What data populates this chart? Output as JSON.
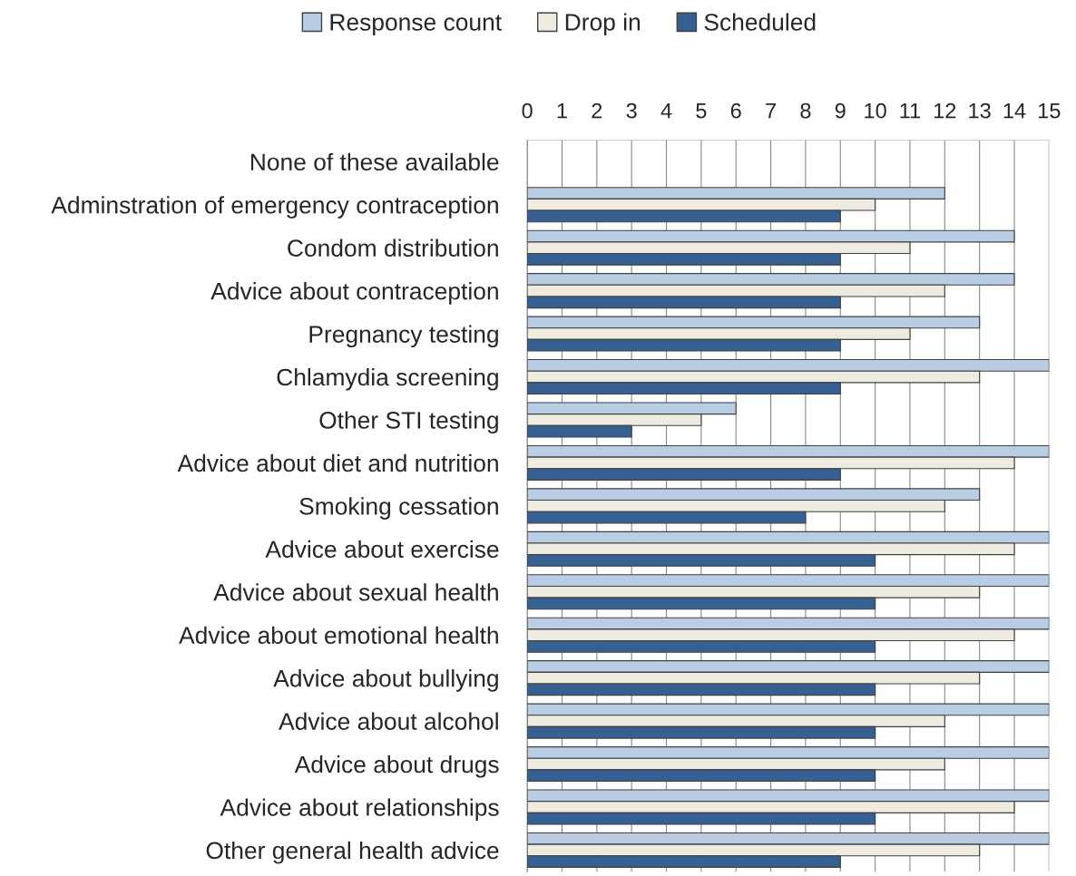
{
  "chart_data": {
    "type": "bar",
    "orientation": "horizontal",
    "categories": [
      "None of these available",
      "Adminstration of emergency contraception",
      "Condom distribution",
      "Advice about contraception",
      "Pregnancy testing",
      "Chlamydia screening",
      "Other STI testing",
      "Advice about diet and nutrition",
      "Smoking cessation",
      "Advice about exercise",
      "Advice about sexual health",
      "Advice about emotional health",
      "Advice about bullying",
      "Advice about alcohol",
      "Advice about drugs",
      "Advice about relationships",
      "Other general health advice"
    ],
    "series": [
      {
        "name": "Response count",
        "color": "#b9cde5",
        "values": [
          null,
          12,
          14,
          14,
          13,
          15,
          6,
          15,
          13,
          15,
          15,
          15,
          15,
          15,
          15,
          15,
          15
        ]
      },
      {
        "name": "Drop in",
        "color": "#eeece1",
        "values": [
          null,
          10,
          11,
          12,
          11,
          13,
          5,
          14,
          12,
          14,
          13,
          14,
          13,
          12,
          12,
          14,
          13
        ]
      },
      {
        "name": "Scheduled",
        "color": "#376092",
        "values": [
          null,
          9,
          9,
          9,
          9,
          9,
          3,
          9,
          8,
          10,
          10,
          10,
          10,
          10,
          10,
          10,
          9
        ]
      }
    ],
    "xlim": [
      0,
      15
    ],
    "xticks": [
      0,
      1,
      2,
      3,
      4,
      5,
      6,
      7,
      8,
      9,
      10,
      11,
      12,
      13,
      14,
      15
    ],
    "grid": "x",
    "legend": "top"
  }
}
